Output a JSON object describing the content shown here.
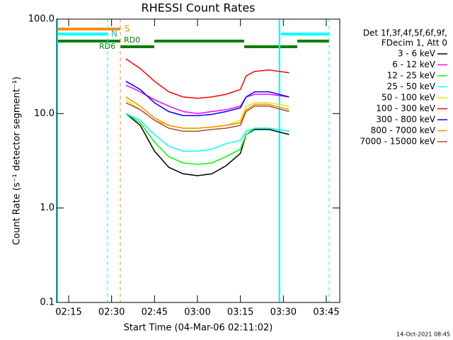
{
  "chart_data": {
    "type": "line",
    "title": "RHESSI Count Rates",
    "xlabel": "Start Time (04-Mar-06 02:11:02)",
    "ylabel": "Count Rate (s⁻¹ detector segment⁻¹)",
    "legend_title": [
      "Det 1f,3f,4f,5f,6f,9f,",
      "FDecim 1, Att 0"
    ],
    "footer": "14-Oct-2021 08:45",
    "annotations": [
      "S",
      "N",
      "RD0",
      "RD6"
    ],
    "log_y": true,
    "legend": "outside-right",
    "x": [
      155,
      160,
      165,
      170,
      175,
      180,
      185,
      190,
      195,
      197,
      200,
      205,
      212
    ],
    "xlim": [
      130.8,
      229.7
    ],
    "xticks": [
      {
        "value": 135,
        "label": "02:15"
      },
      {
        "value": 150,
        "label": "02:30"
      },
      {
        "value": 165,
        "label": "02:45"
      },
      {
        "value": 180,
        "label": "03:00"
      },
      {
        "value": 195,
        "label": "03:15"
      },
      {
        "value": 210,
        "label": "03:30"
      },
      {
        "value": 225,
        "label": "03:45"
      }
    ],
    "ylim": [
      0.1,
      100
    ],
    "yticks": [
      0.1,
      {
        "value": 1,
        "label": "1.0"
      },
      {
        "value": 10,
        "label": "10.0"
      },
      {
        "value": 100,
        "label": "100.0"
      }
    ],
    "series": [
      {
        "name": "3 - 6 keV",
        "color": "#000000",
        "values": [
          10,
          7.5,
          4,
          2.7,
          2.3,
          2.2,
          2.3,
          2.8,
          3.8,
          6,
          6.8,
          6.8,
          6
        ]
      },
      {
        "name": "6 - 12 keV",
        "color": "#ff00ff",
        "values": [
          20,
          17,
          14,
          12,
          10.5,
          10,
          10.5,
          11,
          12,
          15,
          16,
          16,
          15
        ]
      },
      {
        "name": "12 - 25 keV",
        "color": "#00ff00",
        "values": [
          10,
          8,
          5,
          3.5,
          3,
          2.9,
          3,
          3.5,
          4.2,
          6,
          7,
          7,
          6.5
        ]
      },
      {
        "name": "25 - 50 keV",
        "color": "#00ffff",
        "values": [
          10,
          8.5,
          6,
          4.5,
          4,
          4,
          4.2,
          4.8,
          5.2,
          6.5,
          7,
          7,
          6.5
        ]
      },
      {
        "name": "50 - 100 keV",
        "color": "#e8e800",
        "values": [
          14,
          11,
          8.5,
          7.5,
          7,
          7,
          7.2,
          7.5,
          8.5,
          12,
          13,
          13,
          12
        ]
      },
      {
        "name": "100 - 300 keV",
        "color": "#ff0000",
        "values": [
          38,
          30,
          22,
          17,
          15,
          14.5,
          15,
          16,
          18,
          25,
          28,
          29,
          27
        ]
      },
      {
        "name": "300 - 800 keV",
        "color": "#0000ff",
        "values": [
          22,
          18,
          13,
          10.5,
          9.5,
          9.5,
          9.8,
          10.5,
          11.5,
          15,
          17,
          17,
          15
        ]
      },
      {
        "name": "800 - 7000 keV",
        "color": "#ff8c00",
        "values": [
          15,
          12,
          9,
          7.5,
          7,
          7,
          7.2,
          7.5,
          8,
          11,
          12.5,
          12.5,
          11
        ]
      },
      {
        "name": "7000 - 15000 keV",
        "color": "#a0522d",
        "values": [
          13,
          11,
          8.5,
          7,
          6.5,
          6.5,
          6.8,
          7,
          7.5,
          10.5,
          12,
          12,
          10.5
        ]
      }
    ]
  }
}
